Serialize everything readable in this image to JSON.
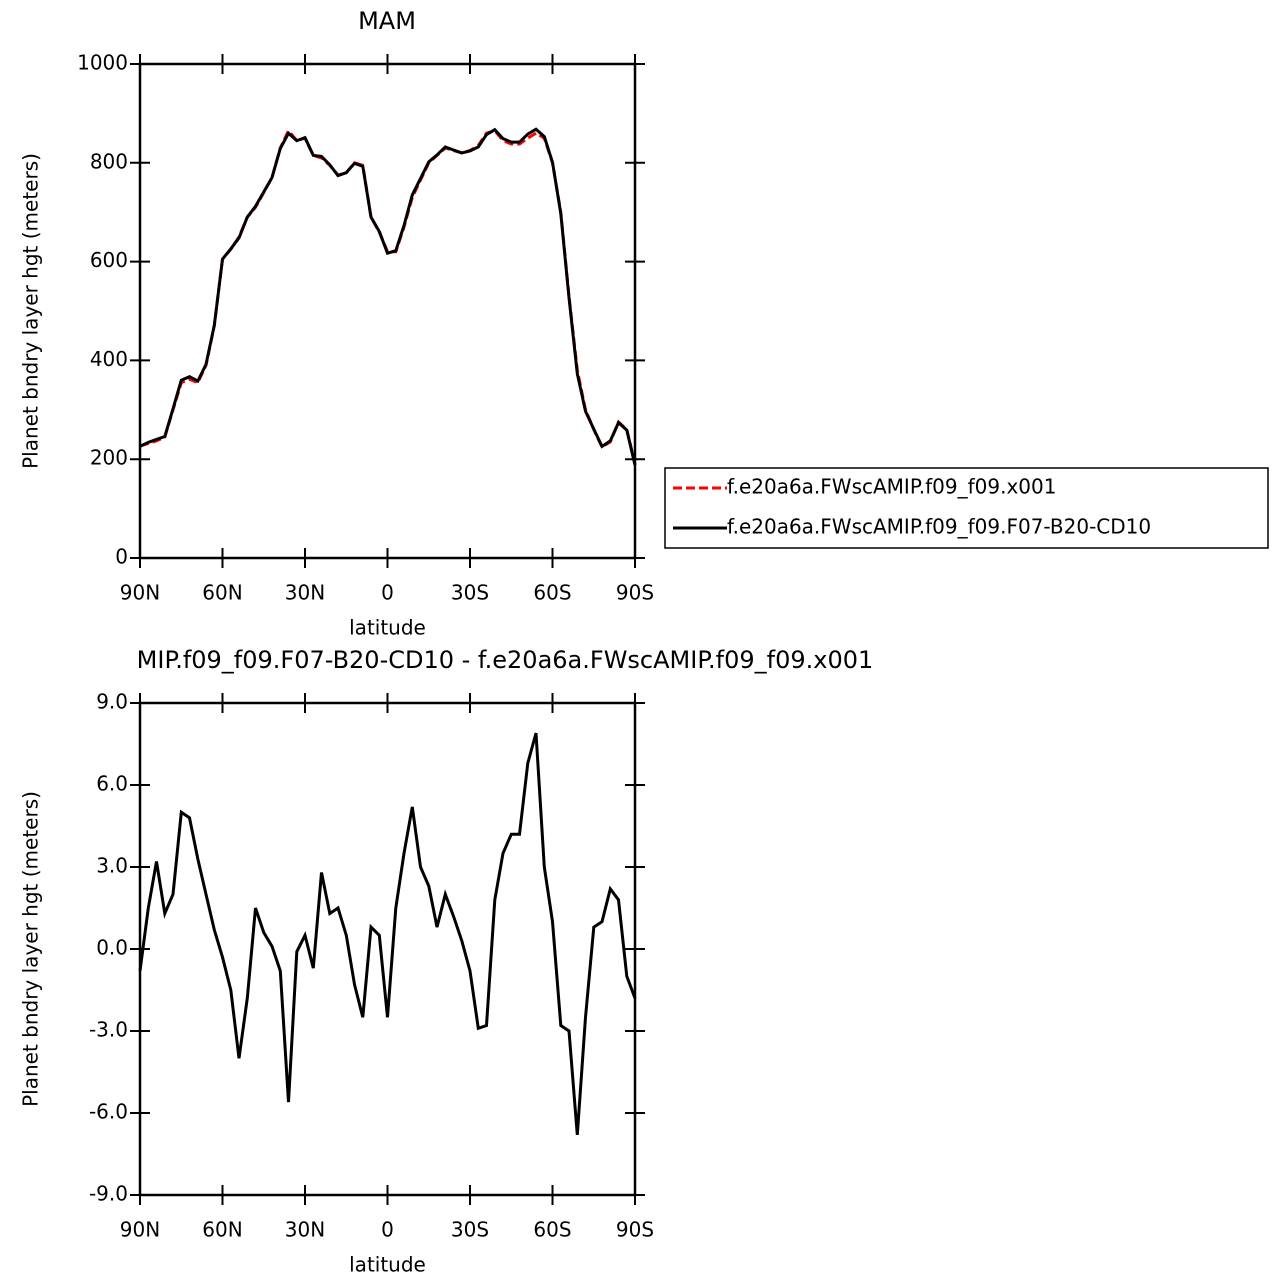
{
  "chart_data": [
    {
      "type": "line",
      "title": "MAM",
      "xlabel": "latitude",
      "ylabel": "Planet bndry layer hgt (meters)",
      "x": [
        90,
        87,
        84,
        81,
        78,
        75,
        72,
        69,
        66,
        63,
        60,
        57,
        54,
        51,
        48,
        45,
        42,
        39,
        36,
        33,
        30,
        27,
        24,
        21,
        18,
        15,
        12,
        9,
        6,
        3,
        0,
        -3,
        -6,
        -9,
        -12,
        -15,
        -18,
        -21,
        -24,
        -27,
        -30,
        -33,
        -36,
        -39,
        -42,
        -45,
        -48,
        -51,
        -54,
        -57,
        -60,
        -63,
        -66,
        -69,
        -72,
        -75,
        -78,
        -81,
        -84,
        -87,
        -90
      ],
      "series": [
        {
          "name": "f.e20a6a.FWscAMIP.f09_f09.x001",
          "color": "#ff0000",
          "line_style": "dashed",
          "values": [
            227,
            232,
            237,
            245,
            300,
            355,
            362,
            355,
            390,
            470,
            605,
            625,
            650,
            690,
            710,
            740,
            770,
            830,
            865,
            845,
            850,
            815,
            810,
            795,
            775,
            780,
            800,
            795,
            690,
            660,
            620,
            620,
            670,
            730,
            765,
            800,
            815,
            830,
            825,
            820,
            825,
            835,
            860,
            865,
            845,
            838,
            838,
            850,
            860,
            850,
            800,
            700,
            530,
            380,
            300,
            260,
            225,
            235,
            275,
            260,
            190
          ]
        },
        {
          "name": "f.e20a6a.FWscAMIP.f09_f09.F07-B20-CD10",
          "color": "#000000",
          "line_style": "solid",
          "values": [
            226,
            234,
            240,
            246,
            302,
            360,
            367,
            358,
            392,
            471,
            605,
            626,
            648,
            690,
            712,
            741,
            770,
            829,
            860,
            845,
            851,
            815,
            813,
            796,
            774,
            780,
            799,
            793,
            690,
            661,
            617,
            622,
            673,
            735,
            768,
            802,
            816,
            832,
            826,
            820,
            824,
            832,
            857,
            867,
            849,
            842,
            842,
            858,
            868,
            853,
            801,
            697,
            527,
            373,
            297,
            261,
            226,
            237,
            274,
            259,
            188
          ]
        }
      ],
      "xlim": [
        90,
        -90
      ],
      "xticks": [
        {
          "value": 90,
          "label": "90N"
        },
        {
          "value": 60,
          "label": "60N"
        },
        {
          "value": 30,
          "label": "30N"
        },
        0,
        {
          "value": -30,
          "label": "30S"
        },
        {
          "value": -60,
          "label": "60S"
        },
        {
          "value": -90,
          "label": "90S"
        }
      ],
      "ylim": [
        0,
        1000
      ],
      "yticks": [
        0,
        200,
        400,
        600,
        800,
        1000
      ],
      "legend": "outside-right"
    },
    {
      "type": "line",
      "title": "MIP.f09_f09.F07-B20-CD10 - f.e20a6a.FWscAMIP.f09_f09.x001",
      "xlabel": "latitude",
      "ylabel": "Planet bndry layer hgt (meters)",
      "x": [
        90,
        87,
        84,
        81,
        78,
        75,
        72,
        69,
        66,
        63,
        60,
        57,
        54,
        51,
        48,
        45,
        42,
        39,
        36,
        33,
        30,
        27,
        24,
        21,
        18,
        15,
        12,
        9,
        6,
        3,
        0,
        -3,
        -6,
        -9,
        -12,
        -15,
        -18,
        -21,
        -24,
        -27,
        -30,
        -33,
        -36,
        -39,
        -42,
        -45,
        -48,
        -51,
        -54,
        -57,
        -60,
        -63,
        -66,
        -69,
        -72,
        -75,
        -78,
        -81,
        -84,
        -87,
        -90
      ],
      "series": [
        {
          "color": "#000000",
          "line_style": "solid",
          "values": [
            -0.8,
            1.5,
            3.2,
            1.3,
            2.0,
            5.0,
            4.8,
            3.3,
            2.0,
            0.7,
            -0.3,
            -1.5,
            -4.0,
            -1.8,
            1.5,
            0.6,
            0.1,
            -0.8,
            -5.6,
            -0.1,
            0.5,
            -0.7,
            2.8,
            1.3,
            1.5,
            0.5,
            -1.3,
            -2.5,
            0.8,
            0.5,
            -2.5,
            1.5,
            3.5,
            5.2,
            3.0,
            2.3,
            0.8,
            2.0,
            1.2,
            0.3,
            -0.8,
            -2.9,
            -2.8,
            1.8,
            3.5,
            4.2,
            4.2,
            6.8,
            7.9,
            3.0,
            1.0,
            -2.8,
            -3.0,
            -6.8,
            -2.5,
            0.8,
            1.0,
            2.2,
            1.8,
            -1.0,
            -1.8
          ]
        }
      ],
      "xlim": [
        90,
        -90
      ],
      "xticks": [
        {
          "value": 90,
          "label": "90N"
        },
        {
          "value": 60,
          "label": "60N"
        },
        {
          "value": 30,
          "label": "30N"
        },
        0,
        {
          "value": -30,
          "label": "30S"
        },
        {
          "value": -60,
          "label": "60S"
        },
        {
          "value": -90,
          "label": "90S"
        }
      ],
      "ylim": [
        -9,
        9
      ],
      "yticks": [
        {
          "value": -9,
          "label": "-9.0"
        },
        {
          "value": -6,
          "label": "-6.0"
        },
        {
          "value": -3,
          "label": "-3.0"
        },
        {
          "value": 0,
          "label": "0.0"
        },
        {
          "value": 3,
          "label": "3.0"
        },
        {
          "value": 6,
          "label": "6.0"
        },
        {
          "value": 9,
          "label": "9.0"
        }
      ]
    }
  ]
}
